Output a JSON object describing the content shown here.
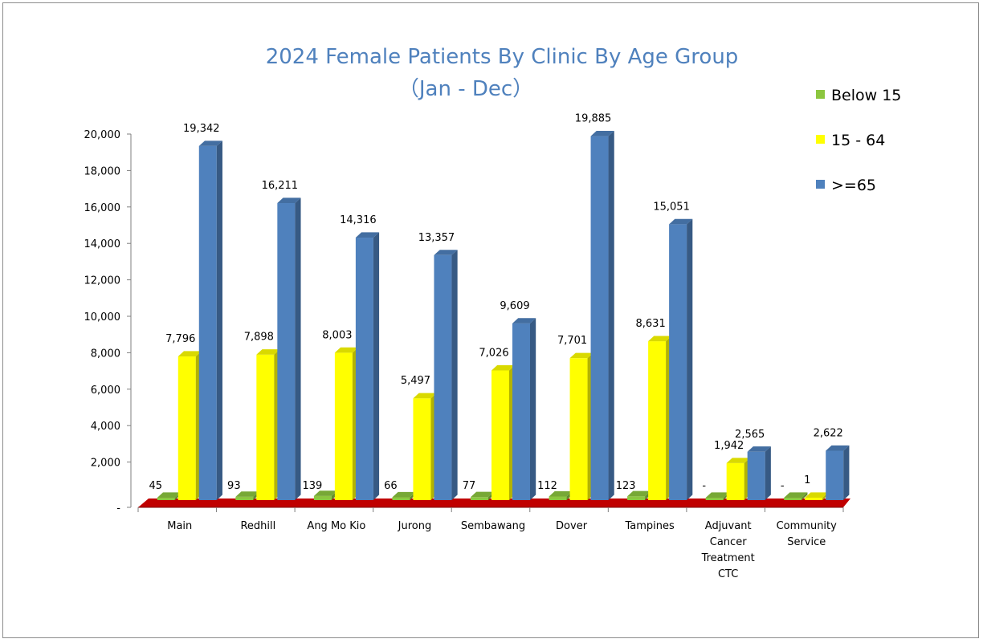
{
  "chart_data": {
    "type": "bar",
    "title": "2024 Female Patients By Clinic By Age Group",
    "subtitle": "（Jan - Dec）",
    "categories": [
      [
        "Main"
      ],
      [
        "Redhill"
      ],
      [
        "Ang Mo Kio"
      ],
      [
        "Jurong"
      ],
      [
        "Sembawang"
      ],
      [
        "Dover"
      ],
      [
        "Tampines"
      ],
      [
        "Adjuvant",
        "Cancer",
        "Treatment",
        "CTC"
      ],
      [
        "Community",
        "Service"
      ]
    ],
    "series": [
      {
        "name": "Below 15",
        "color": "#8cc63f",
        "values": [
          45,
          93,
          139,
          66,
          77,
          112,
          123,
          0,
          0
        ],
        "labels": [
          "45",
          "93",
          "139",
          "66",
          "77",
          "112",
          "123",
          "-",
          "-"
        ]
      },
      {
        "name": "15 - 64",
        "color": "#ffff00",
        "values": [
          7796,
          7898,
          8003,
          5497,
          7026,
          7701,
          8631,
          1942,
          1
        ],
        "labels": [
          "7,796",
          "7,898",
          "8,003",
          "5,497",
          "7,026",
          "7,701",
          "8,631",
          "1,942",
          "1"
        ]
      },
      {
        "name": ">=65",
        "color": "#4f81bd",
        "values": [
          19342,
          16211,
          14316,
          13357,
          9609,
          19885,
          15051,
          2565,
          2622
        ],
        "labels": [
          "19,342",
          "16,211",
          "14,316",
          "13,357",
          "9,609",
          "19,885",
          "15,051",
          "2,565",
          "2,622"
        ]
      }
    ],
    "yticks": [
      "-",
      "2,000",
      "4,000",
      "6,000",
      "8,000",
      "10,000",
      "12,000",
      "14,000",
      "16,000",
      "18,000",
      "20,000"
    ],
    "ylim": [
      0,
      20000
    ],
    "floor_color": "#c00000",
    "legend_position": "top-right",
    "grid": false
  }
}
